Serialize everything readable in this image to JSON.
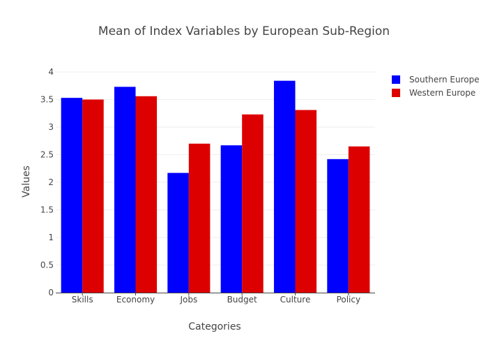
{
  "chart_data": {
    "type": "bar",
    "title": "Mean of Index Variables by European Sub-Region",
    "xlabel": "Categories",
    "ylabel": "Values",
    "categories": [
      "Skills",
      "Economy",
      "Jobs",
      "Budget",
      "Culture",
      "Policy"
    ],
    "series": [
      {
        "name": "Southern Europe",
        "color": "#0000ff",
        "values": [
          3.53,
          3.73,
          2.17,
          2.67,
          3.84,
          2.42
        ]
      },
      {
        "name": "Western Europe",
        "color": "#dd0000",
        "values": [
          3.5,
          3.56,
          2.7,
          3.23,
          3.31,
          2.65
        ]
      }
    ],
    "ylim": [
      0,
      4
    ],
    "yticks": [
      0,
      0.5,
      1,
      1.5,
      2,
      2.5,
      3,
      3.5,
      4
    ],
    "ytick_labels": [
      "0",
      "0.5",
      "1",
      "1.5",
      "2",
      "2.5",
      "3",
      "3.5",
      "4"
    ],
    "grid": true,
    "legend_position": "top-right"
  }
}
